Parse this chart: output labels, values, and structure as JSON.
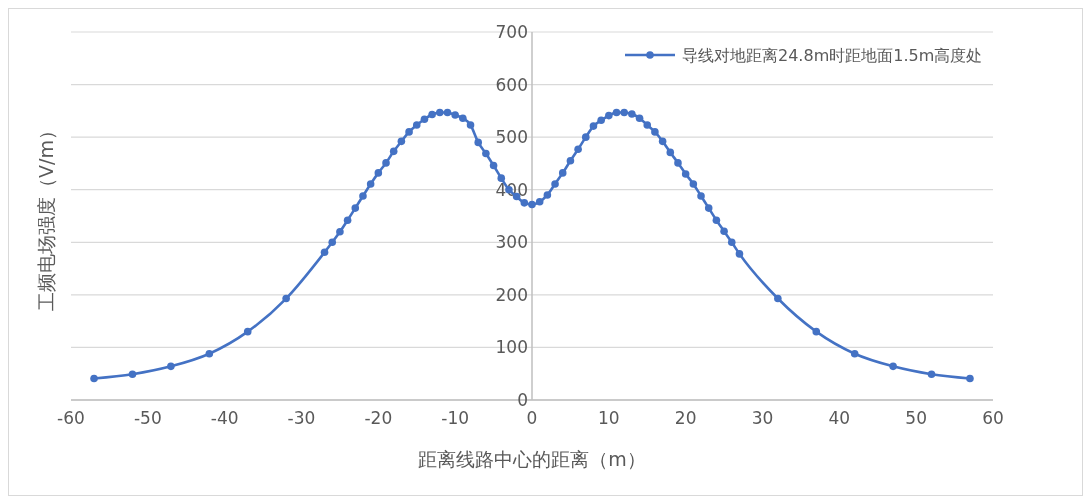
{
  "chart_data": {
    "type": "line",
    "xlabel": "距离线路中心的距离（m）",
    "ylabel": "工频电场强度（V/m）",
    "xlim": [
      -60,
      60
    ],
    "xticks": [
      -60,
      -50,
      -40,
      -30,
      -20,
      -10,
      0,
      10,
      20,
      30,
      40,
      50,
      60
    ],
    "ylim": [
      0,
      700
    ],
    "yticks": [
      0,
      100,
      200,
      300,
      400,
      500,
      600,
      700
    ],
    "grid": "y",
    "legend": "top right",
    "marker": "circle",
    "line_style": "solid",
    "series": [
      {
        "name": "导线对地距离24.8m时距地面1.5m高度处",
        "color": "#4472c4",
        "x": [
          -57,
          -52,
          -47,
          -42,
          -37,
          -32,
          -27,
          -26,
          -25,
          -24,
          -23,
          -22,
          -21,
          -20,
          -19,
          -18,
          -17,
          -16,
          -15,
          -14,
          -13,
          -12,
          -11,
          -10,
          -9,
          -8,
          -7,
          -6,
          -5,
          -4,
          -3,
          -2,
          -1,
          0,
          1,
          2,
          3,
          4,
          5,
          6,
          7,
          8,
          9,
          10,
          11,
          12,
          13,
          14,
          15,
          16,
          17,
          18,
          19,
          20,
          21,
          22,
          23,
          24,
          25,
          26,
          27,
          32,
          37,
          42,
          47,
          52,
          57
        ],
        "values": [
          41,
          49,
          64,
          88,
          130,
          193,
          281,
          300,
          320,
          342,
          365,
          388,
          411,
          432,
          451,
          473,
          492,
          510,
          523,
          534,
          543,
          547,
          547,
          542,
          536,
          523,
          490,
          469,
          446,
          422,
          400,
          387,
          375,
          372,
          377,
          390,
          411,
          432,
          455,
          477,
          500,
          521,
          532,
          541,
          547,
          547,
          544,
          536,
          523,
          510,
          492,
          471,
          451,
          430,
          411,
          388,
          365,
          342,
          321,
          300,
          278,
          193,
          130,
          88,
          64,
          49,
          41
        ]
      }
    ]
  }
}
